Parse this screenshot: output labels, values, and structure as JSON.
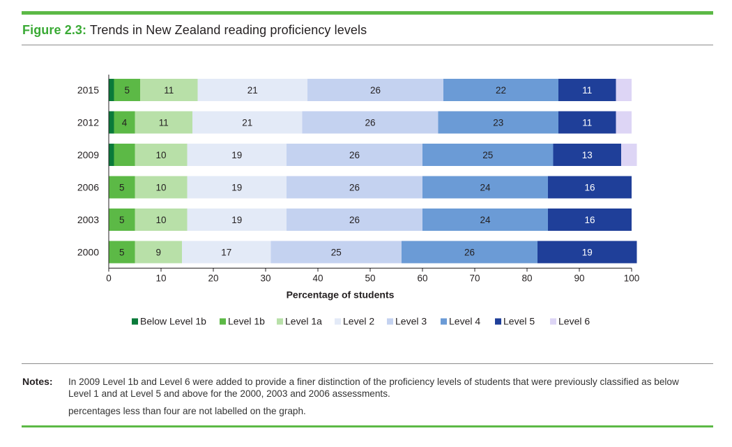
{
  "header": {
    "figure_label": "Figure 2.3:",
    "title": "Trends in New Zealand reading proficiency levels"
  },
  "chart_data": {
    "type": "bar",
    "orientation": "horizontal",
    "stacked": true,
    "categories": [
      "2015",
      "2012",
      "2009",
      "2006",
      "2003",
      "2000"
    ],
    "xlabel": "Percentage of students",
    "xlim": [
      0,
      100
    ],
    "xticks": [
      0,
      10,
      20,
      30,
      40,
      50,
      60,
      70,
      80,
      90,
      100
    ],
    "legend_position": "bottom",
    "series": [
      {
        "name": "Below Level 1b",
        "color": "#0a7a3a",
        "values": [
          1,
          1,
          1,
          null,
          null,
          null
        ],
        "labels": [
          "",
          "",
          "",
          "",
          "",
          ""
        ]
      },
      {
        "name": "Level 1b",
        "color": "#5cb946",
        "values": [
          5,
          4,
          4,
          5,
          5,
          5
        ],
        "labels": [
          "5",
          "4",
          "",
          "5",
          "5",
          "5"
        ]
      },
      {
        "name": "Level 1a",
        "color": "#b8e0a8",
        "values": [
          11,
          11,
          10,
          10,
          10,
          9
        ],
        "labels": [
          "11",
          "11",
          "10",
          "10",
          "10",
          "9"
        ]
      },
      {
        "name": "Level 2",
        "color": "#e3eaf7",
        "values": [
          21,
          21,
          19,
          19,
          19,
          17
        ],
        "labels": [
          "21",
          "21",
          "19",
          "19",
          "19",
          "17"
        ]
      },
      {
        "name": "Level 3",
        "color": "#c4d2f0",
        "values": [
          26,
          26,
          26,
          26,
          26,
          25
        ],
        "labels": [
          "26",
          "26",
          "26",
          "26",
          "26",
          "25"
        ]
      },
      {
        "name": "Level 4",
        "color": "#6b9bd6",
        "values": [
          22,
          23,
          25,
          24,
          24,
          26
        ],
        "labels": [
          "22",
          "23",
          "25",
          "24",
          "24",
          "26"
        ]
      },
      {
        "name": "Level 5",
        "color": "#1f3f99",
        "values": [
          11,
          11,
          13,
          16,
          16,
          19
        ],
        "labels": [
          "11",
          "11",
          "13",
          "16",
          "16",
          "19"
        ]
      },
      {
        "name": "Level 6",
        "color": "#ddd5f5",
        "values": [
          3,
          3,
          3,
          null,
          null,
          null
        ],
        "labels": [
          "",
          "",
          "",
          "",
          "",
          ""
        ]
      }
    ]
  },
  "notes": {
    "label": "Notes:",
    "line1": "In 2009 Level 1b and Level 6 were added to provide a finer distinction of the proficiency levels of students that were previously classified as below Level 1 and at Level 5 and above for the 2000, 2003 and 2006 assessments.",
    "line2": "percentages less than four are not labelled on the graph."
  }
}
